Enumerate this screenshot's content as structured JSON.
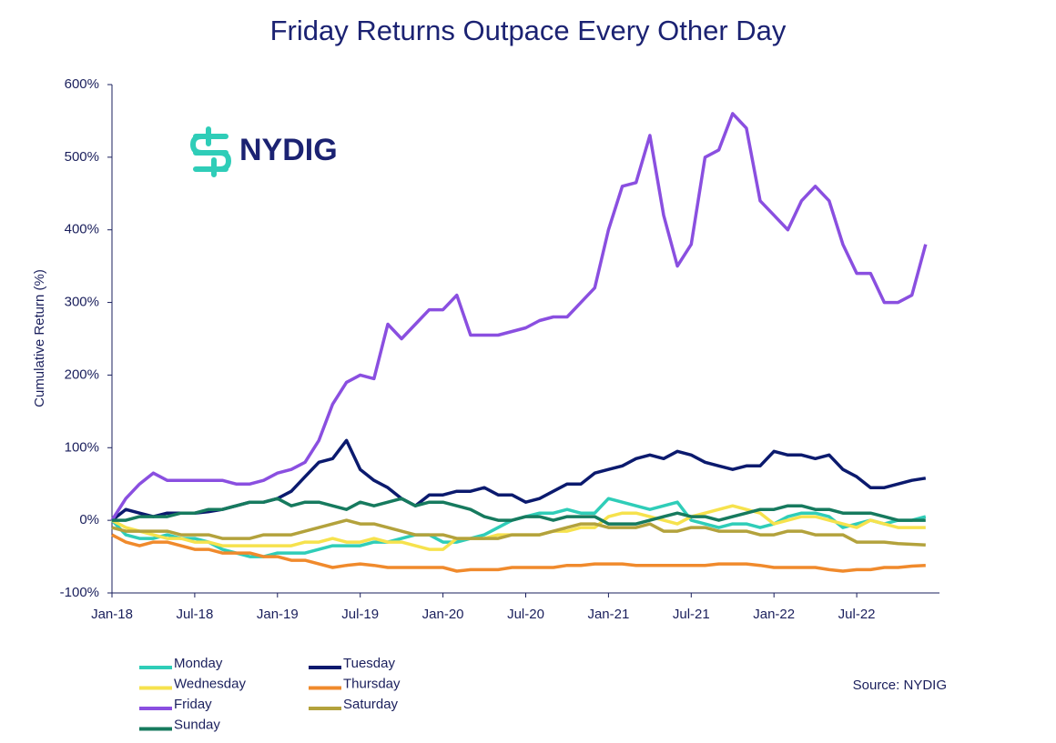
{
  "chart_data": {
    "type": "line",
    "title": "Friday Returns Outpace Every Other Day",
    "y_label": "Cumulative Return (%)",
    "source": "Source: NYDIG",
    "logo": "NYDIG",
    "x": [
      "2018-01",
      "2018-02",
      "2018-03",
      "2018-04",
      "2018-05",
      "2018-06",
      "2018-07",
      "2018-08",
      "2018-09",
      "2018-10",
      "2018-11",
      "2018-12",
      "2019-01",
      "2019-02",
      "2019-03",
      "2019-04",
      "2019-05",
      "2019-06",
      "2019-07",
      "2019-08",
      "2019-09",
      "2019-10",
      "2019-11",
      "2019-12",
      "2020-01",
      "2020-02",
      "2020-03",
      "2020-04",
      "2020-05",
      "2020-06",
      "2020-07",
      "2020-08",
      "2020-09",
      "2020-10",
      "2020-11",
      "2020-12",
      "2021-01",
      "2021-02",
      "2021-03",
      "2021-04",
      "2021-05",
      "2021-06",
      "2021-07",
      "2021-08",
      "2021-09",
      "2021-10",
      "2021-11",
      "2021-12",
      "2022-01",
      "2022-02",
      "2022-03",
      "2022-04",
      "2022-05",
      "2022-06",
      "2022-07",
      "2022-08",
      "2022-09",
      "2022-10",
      "2022-11",
      "2022-12"
    ],
    "xlim": [
      "2018-01",
      "2023-01"
    ],
    "xticks": [
      {
        "value": "2018-01",
        "label": "Jan-18"
      },
      {
        "value": "2018-07",
        "label": "Jul-18"
      },
      {
        "value": "2019-01",
        "label": "Jan-19"
      },
      {
        "value": "2019-07",
        "label": "Jul-19"
      },
      {
        "value": "2020-01",
        "label": "Jan-20"
      },
      {
        "value": "2020-07",
        "label": "Jul-20"
      },
      {
        "value": "2021-01",
        "label": "Jan-21"
      },
      {
        "value": "2021-07",
        "label": "Jul-21"
      },
      {
        "value": "2022-01",
        "label": "Jan-22"
      },
      {
        "value": "2022-07",
        "label": "Jul-22"
      }
    ],
    "ylim": [
      -100,
      600
    ],
    "yticks": [
      {
        "value": -100,
        "label": "-100%"
      },
      {
        "value": 0,
        "label": "0%"
      },
      {
        "value": 100,
        "label": "100%"
      },
      {
        "value": 200,
        "label": "200%"
      },
      {
        "value": 300,
        "label": "300%"
      },
      {
        "value": 400,
        "label": "400%"
      },
      {
        "value": 500,
        "label": "500%"
      },
      {
        "value": 600,
        "label": "600%"
      }
    ],
    "grid": false,
    "legend": "bottom-left",
    "series": [
      {
        "name": "Monday",
        "color": "#2fcdb8",
        "values": [
          0,
          -20,
          -25,
          -25,
          -20,
          -25,
          -25,
          -30,
          -40,
          -45,
          -50,
          -50,
          -45,
          -45,
          -45,
          -40,
          -35,
          -35,
          -35,
          -30,
          -30,
          -25,
          -20,
          -20,
          -30,
          -30,
          -25,
          -20,
          -10,
          0,
          5,
          10,
          10,
          15,
          10,
          10,
          30,
          25,
          20,
          15,
          20,
          25,
          0,
          -5,
          -10,
          -5,
          -5,
          -10,
          -5,
          5,
          10,
          10,
          5,
          -10,
          -5,
          0,
          -5,
          0,
          0,
          5
        ]
      },
      {
        "name": "Tuesday",
        "color": "#0b1a6e",
        "values": [
          0,
          15,
          10,
          5,
          10,
          10,
          10,
          12,
          15,
          20,
          25,
          25,
          30,
          40,
          60,
          80,
          85,
          110,
          70,
          55,
          45,
          30,
          20,
          35,
          35,
          40,
          40,
          45,
          35,
          35,
          25,
          30,
          40,
          50,
          50,
          65,
          70,
          75,
          85,
          90,
          85,
          95,
          90,
          80,
          75,
          70,
          75,
          75,
          95,
          90,
          90,
          85,
          90,
          70,
          60,
          45,
          45,
          50,
          55,
          58
        ]
      },
      {
        "name": "Wednesday",
        "color": "#f6e24d",
        "values": [
          0,
          -10,
          -15,
          -20,
          -25,
          -25,
          -30,
          -30,
          -35,
          -35,
          -35,
          -35,
          -35,
          -35,
          -30,
          -30,
          -25,
          -30,
          -30,
          -25,
          -30,
          -30,
          -35,
          -40,
          -40,
          -25,
          -25,
          -25,
          -20,
          -20,
          -20,
          -20,
          -15,
          -15,
          -10,
          -10,
          5,
          10,
          10,
          5,
          0,
          -5,
          5,
          10,
          15,
          20,
          15,
          10,
          -5,
          0,
          5,
          5,
          0,
          -5,
          -10,
          0,
          -5,
          -10,
          -10,
          -10
        ]
      },
      {
        "name": "Thursday",
        "color": "#f08a2c",
        "values": [
          -20,
          -30,
          -35,
          -30,
          -30,
          -35,
          -40,
          -40,
          -45,
          -45,
          -45,
          -50,
          -50,
          -55,
          -55,
          -60,
          -65,
          -62,
          -60,
          -62,
          -65,
          -65,
          -65,
          -65,
          -65,
          -70,
          -68,
          -68,
          -68,
          -65,
          -65,
          -65,
          -65,
          -62,
          -62,
          -60,
          -60,
          -60,
          -62,
          -62,
          -62,
          -62,
          -62,
          -62,
          -60,
          -60,
          -60,
          -62,
          -65,
          -65,
          -65,
          -65,
          -68,
          -70,
          -68,
          -68,
          -65,
          -65,
          -63,
          -62
        ]
      },
      {
        "name": "Friday",
        "color": "#8a4fe0",
        "values": [
          0,
          30,
          50,
          65,
          55,
          55,
          55,
          55,
          55,
          50,
          50,
          55,
          65,
          70,
          80,
          110,
          160,
          190,
          200,
          195,
          270,
          250,
          270,
          290,
          290,
          310,
          255,
          255,
          255,
          260,
          265,
          275,
          280,
          280,
          300,
          320,
          400,
          460,
          465,
          530,
          420,
          350,
          380,
          500,
          510,
          560,
          540,
          440,
          420,
          400,
          440,
          460,
          440,
          380,
          340,
          340,
          300,
          300,
          310,
          380
        ]
      },
      {
        "name": "Saturday",
        "color": "#b3a23c",
        "values": [
          -10,
          -15,
          -15,
          -15,
          -15,
          -20,
          -20,
          -20,
          -25,
          -25,
          -25,
          -20,
          -20,
          -20,
          -15,
          -10,
          -5,
          0,
          -5,
          -5,
          -10,
          -15,
          -20,
          -20,
          -20,
          -25,
          -25,
          -25,
          -25,
          -20,
          -20,
          -20,
          -15,
          -10,
          -5,
          -5,
          -10,
          -10,
          -10,
          -5,
          -15,
          -15,
          -10,
          -10,
          -15,
          -15,
          -15,
          -20,
          -20,
          -15,
          -15,
          -20,
          -20,
          -20,
          -30,
          -30,
          -30,
          -32,
          -33,
          -34
        ]
      },
      {
        "name": "Sunday",
        "color": "#167a5e",
        "values": [
          0,
          0,
          5,
          5,
          5,
          10,
          10,
          15,
          15,
          20,
          25,
          25,
          30,
          20,
          25,
          25,
          20,
          15,
          25,
          20,
          25,
          30,
          20,
          25,
          25,
          20,
          15,
          5,
          0,
          0,
          5,
          5,
          0,
          5,
          5,
          5,
          -5,
          -5,
          -5,
          0,
          5,
          10,
          5,
          5,
          0,
          5,
          10,
          15,
          15,
          20,
          20,
          15,
          15,
          10,
          10,
          10,
          5,
          0,
          0,
          0
        ]
      }
    ]
  }
}
